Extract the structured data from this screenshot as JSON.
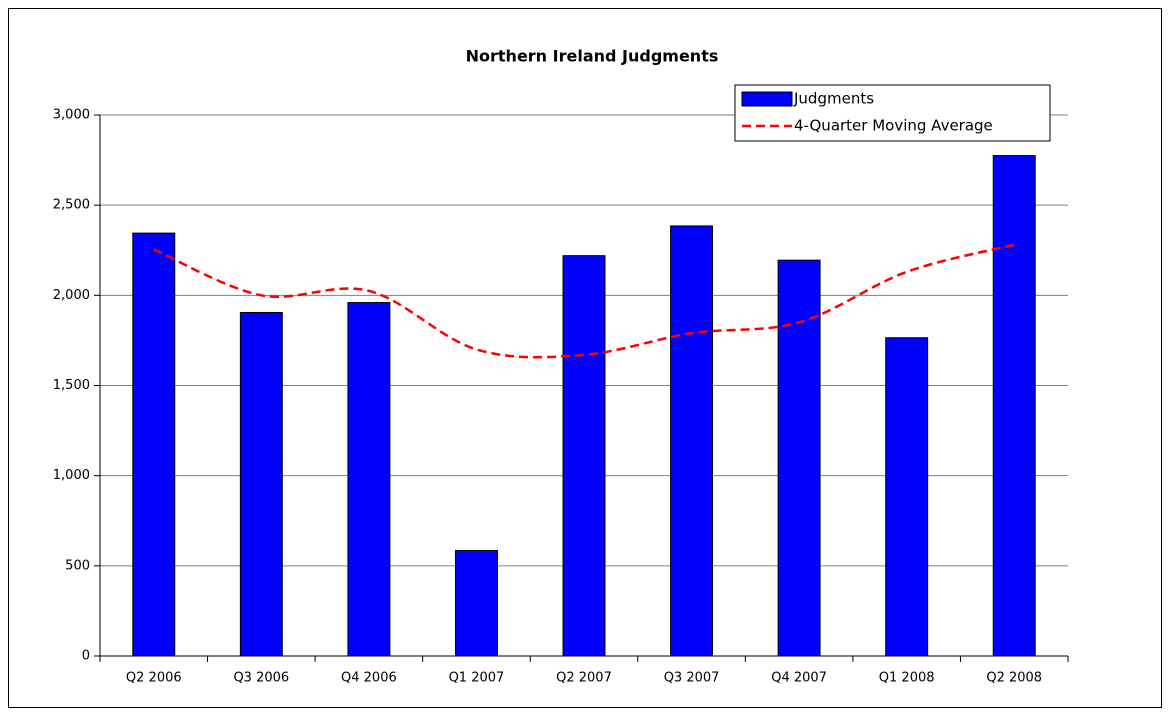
{
  "chart_data": {
    "type": "bar",
    "title": "Northern Ireland Judgments",
    "categories": [
      "Q2 2006",
      "Q3 2006",
      "Q4 2006",
      "Q1 2007",
      "Q2 2007",
      "Q3 2007",
      "Q4 2007",
      "Q1 2008",
      "Q2 2008"
    ],
    "series": [
      {
        "name": "Judgments",
        "type": "bar",
        "color": "#0000ff",
        "values": [
          2345,
          1905,
          1960,
          585,
          2220,
          2385,
          2195,
          1765,
          2775
        ]
      },
      {
        "name": "4-Quarter Moving Average",
        "type": "line",
        "color": "#ff0000",
        "dashed": true,
        "values": [
          2255,
          2000,
          2025,
          1700,
          1670,
          1790,
          1850,
          2130,
          2280
        ]
      }
    ],
    "ylim": [
      0,
      3000
    ],
    "yticks": [
      0,
      500,
      {
        "value": 1000,
        "label": "1,000"
      },
      {
        "value": 1500,
        "label": "1,500"
      },
      {
        "value": 2000,
        "label": "2,000"
      },
      {
        "value": 2500,
        "label": "2,500"
      },
      {
        "value": 3000,
        "label": "3,000"
      }
    ],
    "grid": true,
    "legend": "top-right"
  }
}
